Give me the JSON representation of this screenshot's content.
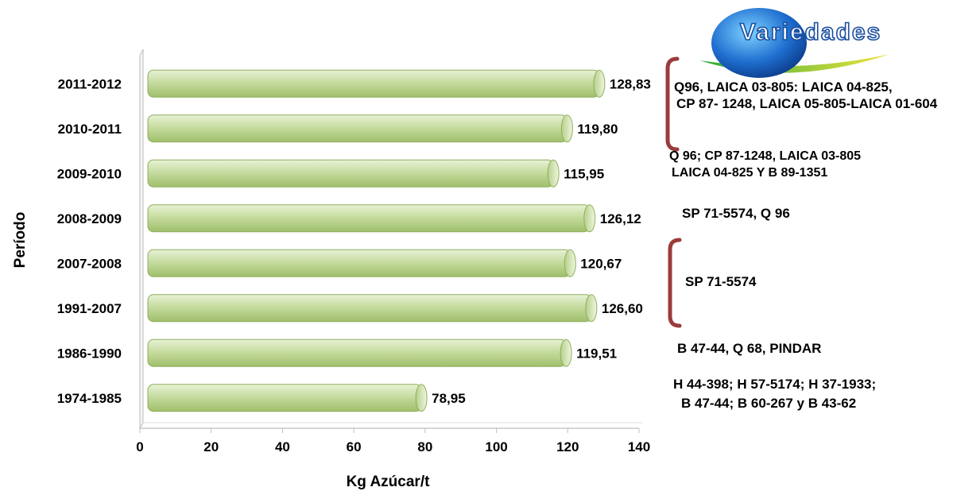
{
  "chart_data": {
    "type": "bar",
    "orientation": "horizontal",
    "categories": [
      "2011-2012",
      "2010-2011",
      "2009-2010",
      "2008-2009",
      "2007-2008",
      "1991-2007",
      "1986-1990",
      "1974-1985"
    ],
    "values": [
      128.83,
      119.8,
      115.95,
      126.12,
      120.67,
      126.6,
      119.51,
      78.95
    ],
    "value_labels": [
      "128,83",
      "119,80",
      "115,95",
      "126,12",
      "120,67",
      "126,60",
      "119,51",
      "78,95"
    ],
    "xlabel": "Kg Azúcar/t",
    "ylabel": "Período",
    "xlim": [
      0,
      140
    ],
    "xticks": [
      0,
      20,
      40,
      60,
      80,
      100,
      120,
      140
    ],
    "grid": false,
    "bar_color": "#c6dca0"
  },
  "logo": {
    "text": "Variedades"
  },
  "annotations": [
    {
      "lines": [
        "Q96, LAICA 03-805: LAICA 04-825,",
        "CP 87- 1248, LAICA 05-805-LAICA 01-604"
      ]
    },
    {
      "lines": [
        "Q 96; CP 87-1248, LAICA 03-805",
        "LAICA 04-825 Y B 89-1351"
      ]
    },
    {
      "lines": [
        "SP 71-5574, Q 96"
      ]
    },
    {
      "lines": [
        "SP 71-5574"
      ]
    },
    {
      "lines": [
        "B 47-44, Q 68, PINDAR"
      ]
    },
    {
      "lines": [
        "H 44-398; H 57-5174; H 37-1933;",
        "B 47-44; B 60-267 y B 43-62"
      ]
    }
  ],
  "colors": {
    "bracket": "#9b3b3b",
    "bar_edge": "#8fae5c"
  }
}
